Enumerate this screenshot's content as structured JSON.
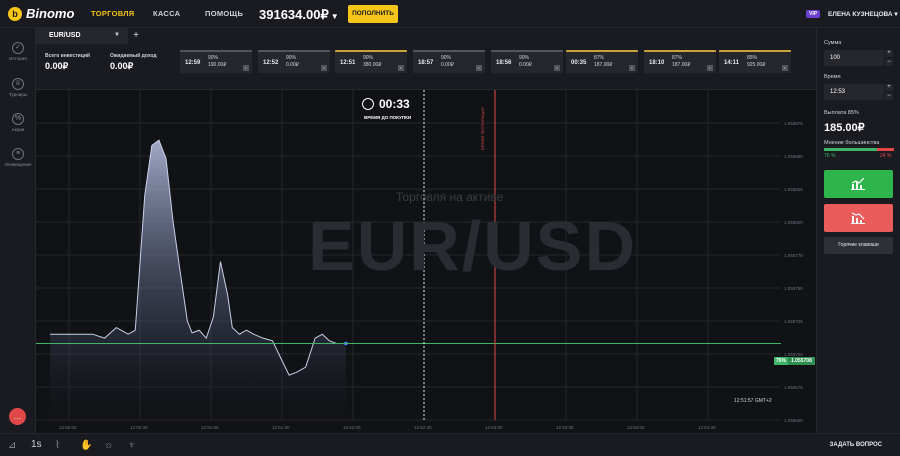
{
  "brand": {
    "name": "Binomo",
    "accent": "#f5c518"
  },
  "nav": {
    "trading": "ТОРГОВЛЯ",
    "cashier": "КАССА",
    "help": "ПОМОЩЬ"
  },
  "account": {
    "balance": "391634.00₽",
    "deposit_label": "ПОПОЛНИТЬ",
    "vip_badge": "VIP",
    "user_name": "ЕЛЕНА КУЗНЕЦОВА"
  },
  "sidebar": {
    "items": [
      {
        "label": "История",
        "icon": "check-circle-icon"
      },
      {
        "label": "Турниры",
        "icon": "trophy-icon"
      },
      {
        "label": "Акции",
        "icon": "percent-icon"
      },
      {
        "label": "Оповещения",
        "icon": "bell-icon"
      }
    ]
  },
  "tabs": {
    "active_asset": "EUR/USD",
    "add_label": "+"
  },
  "summary": {
    "invested_label": "Всего инвестиций",
    "invested_value": "0.00₽",
    "expected_label": "Ожидаемый доход",
    "expected_value": "0.00₽"
  },
  "deals": [
    {
      "time": "12:59",
      "pct": "90%",
      "amount": "190.00₽",
      "highlight": false
    },
    {
      "time": "12:52",
      "pct": "90%",
      "amount": "0.00₽",
      "highlight": false
    },
    {
      "time": "12:51",
      "pct": "90%",
      "amount": "380.00₽",
      "highlight": true
    },
    {
      "time": "18:57",
      "pct": "90%",
      "amount": "0.00₽",
      "highlight": false
    },
    {
      "time": "18:56",
      "pct": "90%",
      "amount": "0.00₽",
      "highlight": false
    },
    {
      "time": "00:35",
      "pct": "87%",
      "amount": "187.00₽",
      "highlight": true
    },
    {
      "time": "18:10",
      "pct": "87%",
      "amount": "187.00₽",
      "highlight": true
    },
    {
      "time": "14:11",
      "pct": "85%",
      "amount": "925.00₽",
      "highlight": true
    }
  ],
  "chart": {
    "watermark_asset": "EUR/USD",
    "watermark_sub": "Торговля на активе",
    "timer": "00:33",
    "timer_label": "ВРЕМЯ ДО ПОКУПКИ",
    "expiry_label": "ВРЕМЯ ЭКСПИРАЦИИ",
    "current_pct": "76%",
    "current_price": "1.055708",
    "clock": "12:51:57 GMT+2",
    "y_ticks": [
      "1.055875",
      "1.055850",
      "1.055825",
      "1.055800",
      "1.055775",
      "1.055750",
      "1.055725",
      "1.055700",
      "1.055675",
      "1.055650"
    ],
    "x_ticks": [
      "12:50:00",
      "12:50:30",
      "12:51:00",
      "12:51:30",
      "12:52:00",
      "12:52:30",
      "12:53:00",
      "12:53:30",
      "12:54:00",
      "12:54:30"
    ],
    "colors": {
      "up": "#3fb56a",
      "down": "#e04848",
      "line": "#c8d0e8"
    }
  },
  "chart_data": {
    "type": "area",
    "x": [
      "12:49:52",
      "12:50:10",
      "12:50:15",
      "12:50:20",
      "12:50:25",
      "12:50:28",
      "12:50:32",
      "12:50:35",
      "12:50:38",
      "12:50:41",
      "12:50:44",
      "12:50:47",
      "12:50:50",
      "12:50:52",
      "12:50:55",
      "12:50:58",
      "12:51:01",
      "12:51:04",
      "12:51:07",
      "12:51:09",
      "12:51:12",
      "12:51:15",
      "12:51:18",
      "12:51:22",
      "12:51:26",
      "12:51:30",
      "12:51:33",
      "12:51:36",
      "12:51:40",
      "12:51:44",
      "12:51:47",
      "12:51:50",
      "12:51:53",
      "12:51:55",
      "12:51:57"
    ],
    "values": [
      1.055715,
      1.055715,
      1.055712,
      1.05572,
      1.055715,
      1.055718,
      1.05582,
      1.055858,
      1.055862,
      1.055848,
      1.0558,
      1.055762,
      1.055725,
      1.055716,
      1.055718,
      1.055712,
      1.055728,
      1.05577,
      1.055745,
      1.05572,
      1.055715,
      1.055718,
      1.055715,
      1.055712,
      1.05571,
      1.055695,
      1.055684,
      1.055686,
      1.05569,
      1.055712,
      1.055715,
      1.05571,
      1.055708,
      1.055708,
      1.055708
    ],
    "ylim": [
      1.05565,
      1.0559
    ]
  },
  "trade": {
    "amount_label": "Сумма",
    "amount_value": "100",
    "time_label": "Время",
    "time_value": "12:53",
    "payout_label": "Выплата 85%",
    "payout_value": "185.00₽",
    "sentiment_label": "Мнение большинства",
    "sentiment_up": "76 %",
    "sentiment_down": "24 %",
    "hotkeys_label": "Горячие клавиши"
  },
  "bottom": {
    "interval": "1s",
    "ask_label": "ЗАДАТЬ ВОПРОС"
  }
}
